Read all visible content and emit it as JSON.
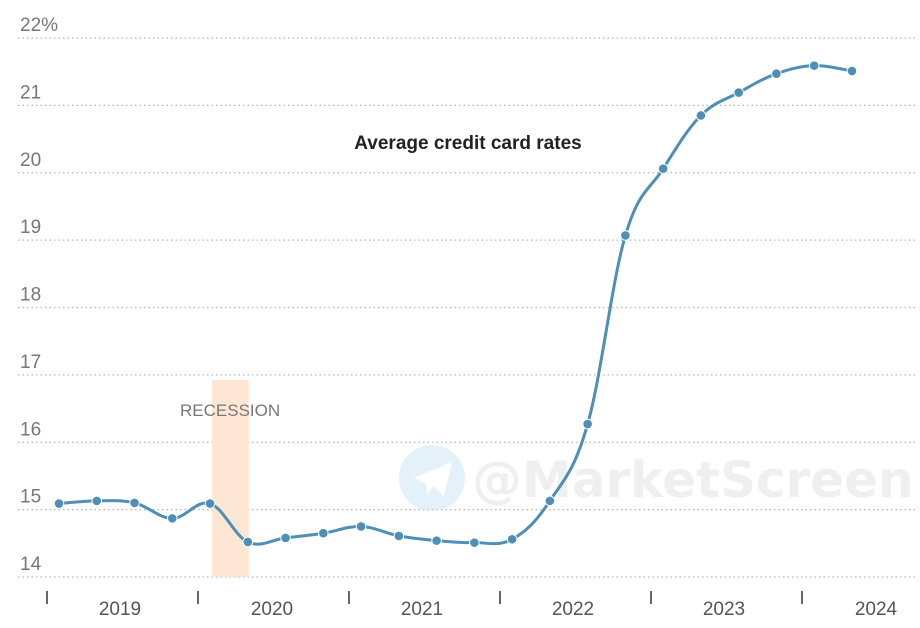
{
  "chart_data": {
    "type": "line",
    "title": "Average credit card rates",
    "xlabel": "",
    "ylabel": "",
    "ylim": [
      14,
      22
    ],
    "y_ticks": [
      {
        "value": 22,
        "label": "22%"
      },
      {
        "value": 21,
        "label": "21"
      },
      {
        "value": 20,
        "label": "20"
      },
      {
        "value": 19,
        "label": "19"
      },
      {
        "value": 18,
        "label": "18"
      },
      {
        "value": 17,
        "label": "17"
      },
      {
        "value": 16,
        "label": "16"
      },
      {
        "value": 15,
        "label": "15"
      },
      {
        "value": 14,
        "label": "14"
      }
    ],
    "x_labels": [
      "2019",
      "2020",
      "2021",
      "2022",
      "2023",
      "2024"
    ],
    "grid": "horizontal-dotted",
    "recession": {
      "label": "RECESSION",
      "start_quarter": 4,
      "end_quarter": 5
    },
    "series": [
      {
        "color": "#4e8fb7",
        "x": [
          "2019 Q1",
          "2019 Q2",
          "2019 Q3",
          "2019 Q4",
          "2020 Q1",
          "2020 Q2",
          "2020 Q3",
          "2020 Q4",
          "2021 Q1",
          "2021 Q2",
          "2021 Q3",
          "2021 Q4",
          "2022 Q1",
          "2022 Q2",
          "2022 Q3",
          "2022 Q4",
          "2023 Q1",
          "2023 Q2",
          "2023 Q3",
          "2023 Q4",
          "2024 Q1",
          "2024 Q2"
        ],
        "values": [
          15.09,
          15.13,
          15.1,
          14.87,
          15.09,
          14.52,
          14.58,
          14.65,
          14.75,
          14.61,
          14.54,
          14.51,
          14.56,
          15.13,
          16.27,
          19.07,
          20.06,
          20.85,
          21.19,
          21.47,
          21.59,
          21.51
        ]
      }
    ]
  },
  "watermark": {
    "text": "@MarketScreen",
    "icon": "telegram-icon"
  }
}
